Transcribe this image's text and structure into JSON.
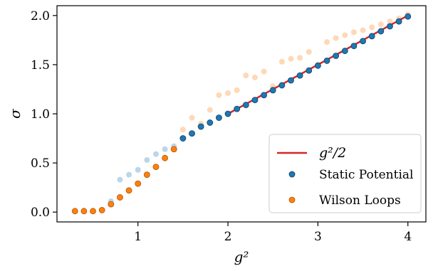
{
  "chart_data": {
    "type": "scatter",
    "xlabel": "g²",
    "ylabel": "σ",
    "xlim": [
      0.1,
      4.2
    ],
    "ylim": [
      -0.1,
      2.1
    ],
    "xticks": [
      1,
      2,
      3,
      4
    ],
    "yticks": [
      0.0,
      0.5,
      1.0,
      1.5,
      2.0
    ],
    "xtick_labels": [
      "1",
      "2",
      "3",
      "4"
    ],
    "ytick_labels": [
      "0.0",
      "0.5",
      "1.0",
      "1.5",
      "2.0"
    ],
    "legend_position": "lower-right",
    "line": {
      "name": "g²/2",
      "color": "#d62728",
      "x": [
        2.0,
        4.0
      ],
      "y": [
        1.0,
        2.0
      ]
    },
    "series": [
      {
        "name": "Static Potential",
        "color": "#1f77b4",
        "faded_x": [
          0.7,
          0.8,
          0.9,
          1.0,
          1.1,
          1.2,
          1.3,
          1.4
        ],
        "faded_y": [
          0.11,
          0.33,
          0.38,
          0.43,
          0.53,
          0.59,
          0.64,
          0.67
        ],
        "x": [
          1.5,
          1.6,
          1.7,
          1.8,
          1.9,
          2.0,
          2.1,
          2.2,
          2.3,
          2.4,
          2.5,
          2.6,
          2.7,
          2.8,
          2.9,
          3.0,
          3.1,
          3.2,
          3.3,
          3.4,
          3.5,
          3.6,
          3.7,
          3.8,
          3.9,
          4.0
        ],
        "y": [
          0.75,
          0.8,
          0.87,
          0.91,
          0.96,
          1.0,
          1.05,
          1.09,
          1.14,
          1.19,
          1.24,
          1.29,
          1.34,
          1.39,
          1.44,
          1.49,
          1.54,
          1.59,
          1.64,
          1.69,
          1.74,
          1.79,
          1.84,
          1.89,
          1.94,
          1.99
        ]
      },
      {
        "name": "Wilson Loops",
        "color": "#ff7f0e",
        "x": [
          0.3,
          0.4,
          0.5,
          0.6,
          0.7,
          0.8,
          0.9,
          1.0,
          1.1,
          1.2,
          1.3,
          1.4
        ],
        "y": [
          0.01,
          0.01,
          0.01,
          0.02,
          0.08,
          0.15,
          0.22,
          0.29,
          0.38,
          0.46,
          0.55,
          0.64
        ],
        "faded_x": [
          1.5,
          1.6,
          1.7,
          1.8,
          1.9,
          2.0,
          2.1,
          2.2,
          2.3,
          2.4,
          2.5,
          2.6,
          2.7,
          2.8,
          2.9,
          3.0,
          3.1,
          3.2,
          3.3,
          3.4,
          3.5,
          3.6,
          3.7,
          3.8,
          3.9,
          4.0
        ],
        "faded_y": [
          0.84,
          0.96,
          0.9,
          1.04,
          1.19,
          1.21,
          1.24,
          1.39,
          1.37,
          1.43,
          1.28,
          1.53,
          1.56,
          1.57,
          1.63,
          1.5,
          1.73,
          1.77,
          1.8,
          1.83,
          1.85,
          1.88,
          1.91,
          1.94,
          1.97,
          2.01
        ]
      }
    ]
  }
}
